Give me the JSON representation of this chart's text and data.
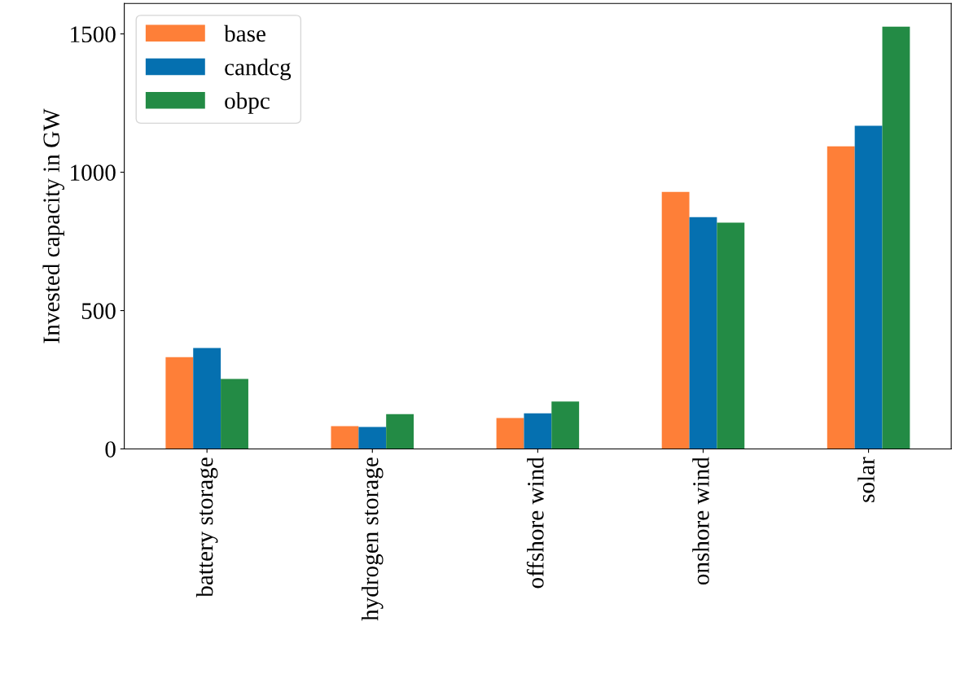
{
  "chart_data": {
    "type": "bar",
    "ylabel": "Invested capacity in GW",
    "categories": [
      "battery storage",
      "hydrogen storage",
      "offshore wind",
      "onshore wind",
      "solar"
    ],
    "series": [
      {
        "name": "base",
        "color": "#fe7f38",
        "values": [
          332,
          82,
          112,
          929,
          1094
        ]
      },
      {
        "name": "candcg",
        "color": "#0570b0",
        "values": [
          365,
          79,
          129,
          838,
          1168
        ]
      },
      {
        "name": "obpc",
        "color": "#238b45",
        "values": [
          253,
          126,
          171,
          818,
          1526
        ]
      }
    ],
    "ylim": [
      0,
      1610
    ],
    "yticks": [
      0,
      500,
      1000,
      1500
    ],
    "grid": false,
    "legend": "top left"
  }
}
